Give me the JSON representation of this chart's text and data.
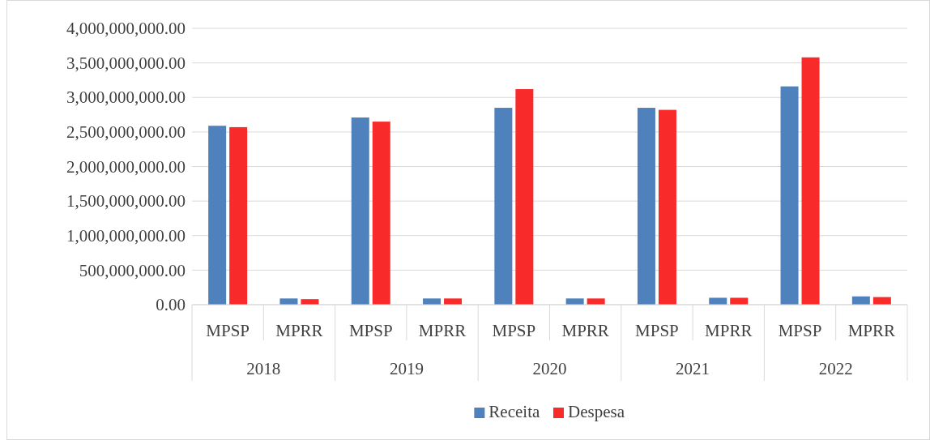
{
  "chart_data": {
    "type": "bar",
    "categories": [
      "MPSP",
      "MPRR",
      "MPSP",
      "MPRR",
      "MPSP",
      "MPRR",
      "MPSP",
      "MPRR",
      "MPSP",
      "MPRR"
    ],
    "annotations": [
      "2018",
      "2019",
      "2020",
      "2021",
      "2022"
    ],
    "series": [
      {
        "name": "Receita",
        "color": "#4f81bd",
        "values": [
          2590000000,
          90000000,
          2710000000,
          90000000,
          2850000000,
          90000000,
          2850000000,
          100000000,
          3160000000,
          120000000
        ]
      },
      {
        "name": "Despesa",
        "color": "#f92a2a",
        "values": [
          2570000000,
          80000000,
          2650000000,
          90000000,
          3120000000,
          90000000,
          2820000000,
          100000000,
          3580000000,
          110000000
        ]
      }
    ],
    "ylim": [
      0,
      4000000000
    ],
    "yticks": [
      {
        "value": 0,
        "label": "0.00"
      },
      {
        "value": 500000000,
        "label": "500,000,000.00"
      },
      {
        "value": 1000000000,
        "label": "1,000,000,000.00"
      },
      {
        "value": 1500000000,
        "label": "1,500,000,000.00"
      },
      {
        "value": 2000000000,
        "label": "2,000,000,000.00"
      },
      {
        "value": 2500000000,
        "label": "2,500,000,000.00"
      },
      {
        "value": 3000000000,
        "label": "3,000,000,000.00"
      },
      {
        "value": 3500000000,
        "label": "3,500,000,000.00"
      },
      {
        "value": 4000000000,
        "label": "4,000,000,000.00"
      }
    ],
    "grid": "y",
    "legend": "bottom"
  }
}
